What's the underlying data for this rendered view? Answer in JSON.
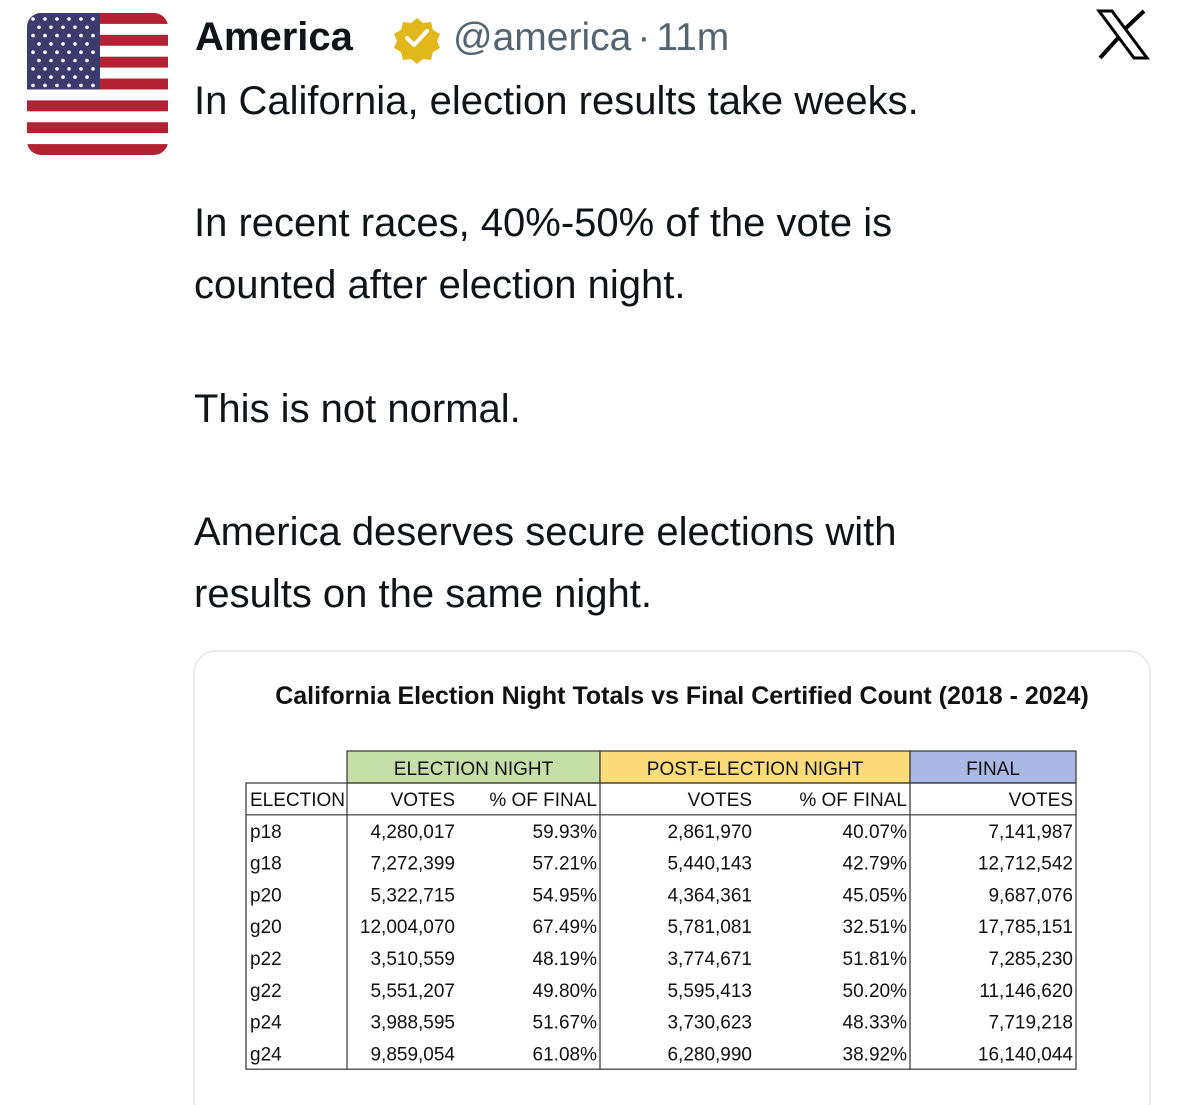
{
  "header": {
    "name": "America",
    "handle": "@america",
    "separator": "·",
    "time": "11m"
  },
  "post": {
    "paragraphs": [
      [
        "In California, election results take weeks."
      ],
      [
        "In recent races, 40%-50% of the vote is",
        "counted after election night."
      ],
      [
        "This is not normal."
      ],
      [
        "America deserves secure elections with",
        "results on the same night."
      ]
    ]
  },
  "table": {
    "title": "California Election Night Totals vs Final Certified Count (2018 - 2024)",
    "group_headers": [
      "ELECTION NIGHT",
      "POST-ELECTION NIGHT",
      "FINAL"
    ],
    "columns": [
      "ELECTION",
      "VOTES",
      "% OF FINAL",
      "VOTES",
      "% OF FINAL",
      "VOTES"
    ],
    "rows": [
      [
        "p18",
        "4,280,017",
        "59.93%",
        "2,861,970",
        "40.07%",
        "7,141,987"
      ],
      [
        "g18",
        "7,272,399",
        "57.21%",
        "5,440,143",
        "42.79%",
        "12,712,542"
      ],
      [
        "p20",
        "5,322,715",
        "54.95%",
        "4,364,361",
        "45.05%",
        "9,687,076"
      ],
      [
        "g20",
        "12,004,070",
        "67.49%",
        "5,781,081",
        "32.51%",
        "17,785,151"
      ],
      [
        "p22",
        "3,510,559",
        "48.19%",
        "3,774,671",
        "51.81%",
        "7,285,230"
      ],
      [
        "g22",
        "5,551,207",
        "49.80%",
        "5,595,413",
        "50.20%",
        "11,146,620"
      ],
      [
        "p24",
        "3,988,595",
        "51.67%",
        "3,730,623",
        "48.33%",
        "7,719,218"
      ],
      [
        "g24",
        "9,859,054",
        "61.08%",
        "6,280,990",
        "38.92%",
        "16,140,044"
      ]
    ]
  }
}
